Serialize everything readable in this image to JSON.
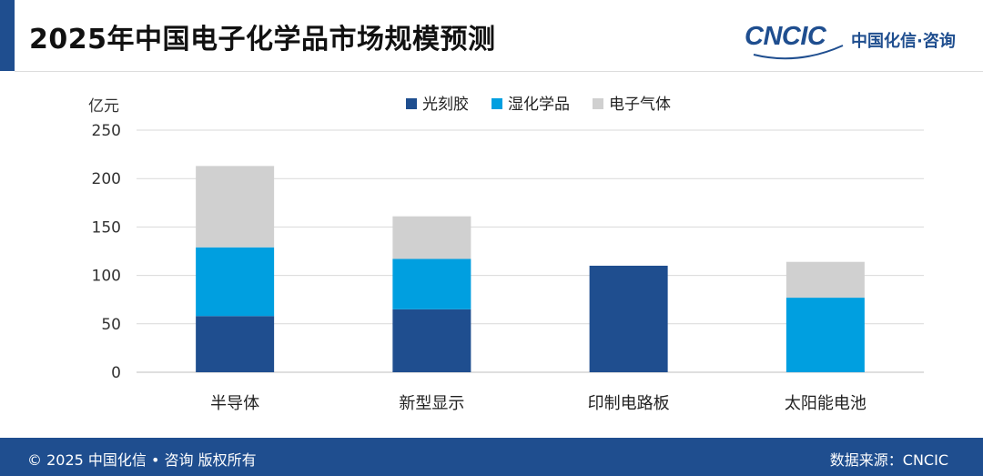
{
  "header": {
    "title": "2025年中国电子化学品市场规模预测",
    "logo_mark": "CNCIC",
    "logo_text": "中国化信·咨询"
  },
  "footer": {
    "copyright": "© 2025 中国化信 • 咨询  版权所有",
    "source": "数据来源：CNCIC"
  },
  "colors": {
    "brand": "#1f4e8f",
    "series": [
      "#1f4e8f",
      "#009fe0",
      "#d0d0d0"
    ]
  },
  "chart_data": {
    "type": "bar",
    "stacked": true,
    "ylabel": "亿元",
    "ylim": [
      0,
      250
    ],
    "yticks": [
      0,
      50,
      100,
      150,
      200,
      250
    ],
    "grid": true,
    "legend_position": "top",
    "categories": [
      "半导体",
      "新型显示",
      "印制电路板",
      "太阳能电池"
    ],
    "series": [
      {
        "name": "光刻胶",
        "values": [
          58,
          65,
          110,
          0
        ]
      },
      {
        "name": "湿化学品",
        "values": [
          71,
          52,
          0,
          77
        ]
      },
      {
        "name": "电子气体",
        "values": [
          84,
          44,
          0,
          37
        ]
      }
    ]
  }
}
